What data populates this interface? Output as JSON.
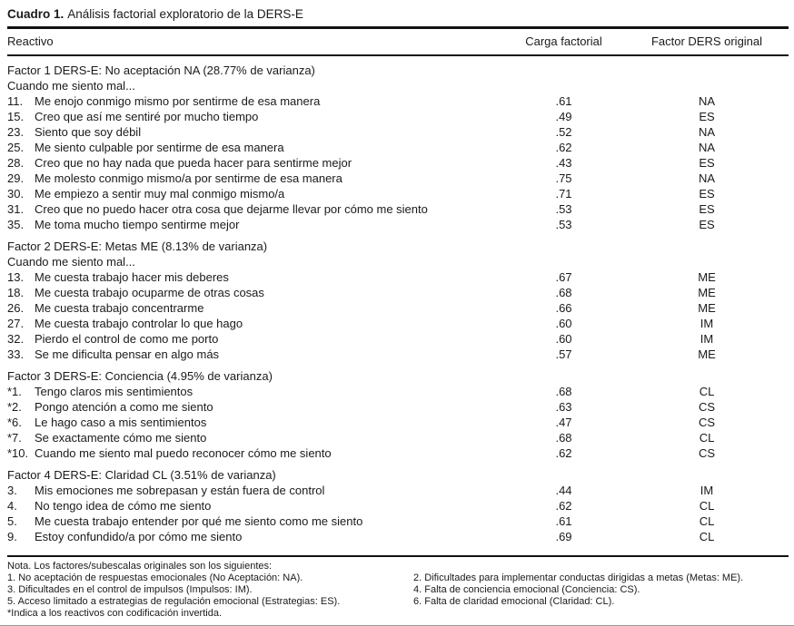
{
  "title": {
    "label": "Cuadro 1.",
    "caption": "Análisis factorial exploratorio de la DERS-E"
  },
  "header": {
    "reactivo": "Reactivo",
    "carga": "Carga factorial",
    "factor": "Factor DERS original"
  },
  "sections": [
    {
      "heading": "Factor 1 DERS-E: No aceptación NA (28.77% de varianza)",
      "prompt": "Cuando me siento mal...",
      "rows": [
        {
          "num": "11.",
          "text": "Me enojo conmigo mismo por sentirme de esa manera",
          "load": ".61",
          "factor": "NA"
        },
        {
          "num": "15.",
          "text": "Creo que así me sentiré por mucho tiempo",
          "load": ".49",
          "factor": "ES"
        },
        {
          "num": "23.",
          "text": "Siento que soy débil",
          "load": ".52",
          "factor": "NA"
        },
        {
          "num": "25.",
          "text": "Me siento culpable por sentirme de esa manera",
          "load": ".62",
          "factor": "NA"
        },
        {
          "num": "28.",
          "text": "Creo que no hay nada que pueda hacer para sentirme mejor",
          "load": ".43",
          "factor": "ES"
        },
        {
          "num": "29.",
          "text": "Me molesto conmigo mismo/a por sentirme de esa manera",
          "load": ".75",
          "factor": "NA"
        },
        {
          "num": "30.",
          "text": "Me empiezo a sentir muy mal conmigo mismo/a",
          "load": ".71",
          "factor": "ES"
        },
        {
          "num": "31.",
          "text": "Creo que no puedo hacer otra cosa que dejarme llevar por cómo me siento",
          "load": ".53",
          "factor": "ES"
        },
        {
          "num": "35.",
          "text": "Me toma mucho tiempo sentirme mejor",
          "load": ".53",
          "factor": "ES"
        }
      ]
    },
    {
      "heading": "Factor 2 DERS-E: Metas ME (8.13% de varianza)",
      "prompt": "Cuando me siento mal...",
      "rows": [
        {
          "num": "13.",
          "text": "Me cuesta trabajo hacer mis deberes",
          "load": ".67",
          "factor": "ME"
        },
        {
          "num": "18.",
          "text": "Me cuesta trabajo ocuparme de otras cosas",
          "load": ".68",
          "factor": "ME"
        },
        {
          "num": "26.",
          "text": "Me cuesta trabajo concentrarme",
          "load": ".66",
          "factor": "ME"
        },
        {
          "num": "27.",
          "text": "Me cuesta trabajo controlar lo que hago",
          "load": ".60",
          "factor": "IM"
        },
        {
          "num": "32.",
          "text": "Pierdo el control de como me porto",
          "load": ".60",
          "factor": "IM"
        },
        {
          "num": "33.",
          "text": "Se me dificulta pensar en algo más",
          "load": ".57",
          "factor": "ME"
        }
      ]
    },
    {
      "heading": "Factor 3 DERS-E: Conciencia (4.95% de varianza)",
      "prompt": null,
      "rows": [
        {
          "num": "*1.",
          "text": "Tengo claros mis sentimientos",
          "load": ".68",
          "factor": "CL"
        },
        {
          "num": "*2.",
          "text": "Pongo atención a como me siento",
          "load": ".63",
          "factor": "CS"
        },
        {
          "num": "*6.",
          "text": "Le hago caso a mis sentimientos",
          "load": ".47",
          "factor": "CS"
        },
        {
          "num": "*7.",
          "text": "Se exactamente cómo me siento",
          "load": ".68",
          "factor": "CL"
        },
        {
          "num": "*10.",
          "text": "Cuando me siento mal puedo reconocer cómo me siento",
          "load": ".62",
          "factor": "CS"
        }
      ]
    },
    {
      "heading": "Factor 4 DERS-E: Claridad CL (3.51% de varianza)",
      "prompt": null,
      "rows": [
        {
          "num": "3.",
          "text": "Mis emociones me sobrepasan y están fuera de control",
          "load": ".44",
          "factor": "IM"
        },
        {
          "num": "4.",
          "text": "No tengo idea de cómo me siento",
          "load": ".62",
          "factor": "CL"
        },
        {
          "num": "5.",
          "text": "Me cuesta trabajo entender por qué me siento como me siento",
          "load": ".61",
          "factor": "CL"
        },
        {
          "num": "9.",
          "text": "Estoy confundido/a por cómo me siento",
          "load": ".69",
          "factor": "CL"
        }
      ]
    }
  ],
  "footer": {
    "nota_line": "Nota. Los factores/subescalas originales son los siguientes:",
    "notes": [
      "1. No aceptación de respuestas emocionales (No Aceptación: NA).",
      "2. Dificultades para implementar conductas dirigidas a metas (Metas: ME).",
      "3. Dificultades en el control de impulsos (Impulsos: IM).",
      "4. Falta de conciencia emocional (Conciencia: CS).",
      "5. Acceso limitado a estrategias de regulación emocional (Estrategias: ES).",
      "6. Falta de claridad emocional (Claridad: CL)."
    ],
    "asterisk_line": "*Indica a los reactivos con codificación invertida."
  }
}
